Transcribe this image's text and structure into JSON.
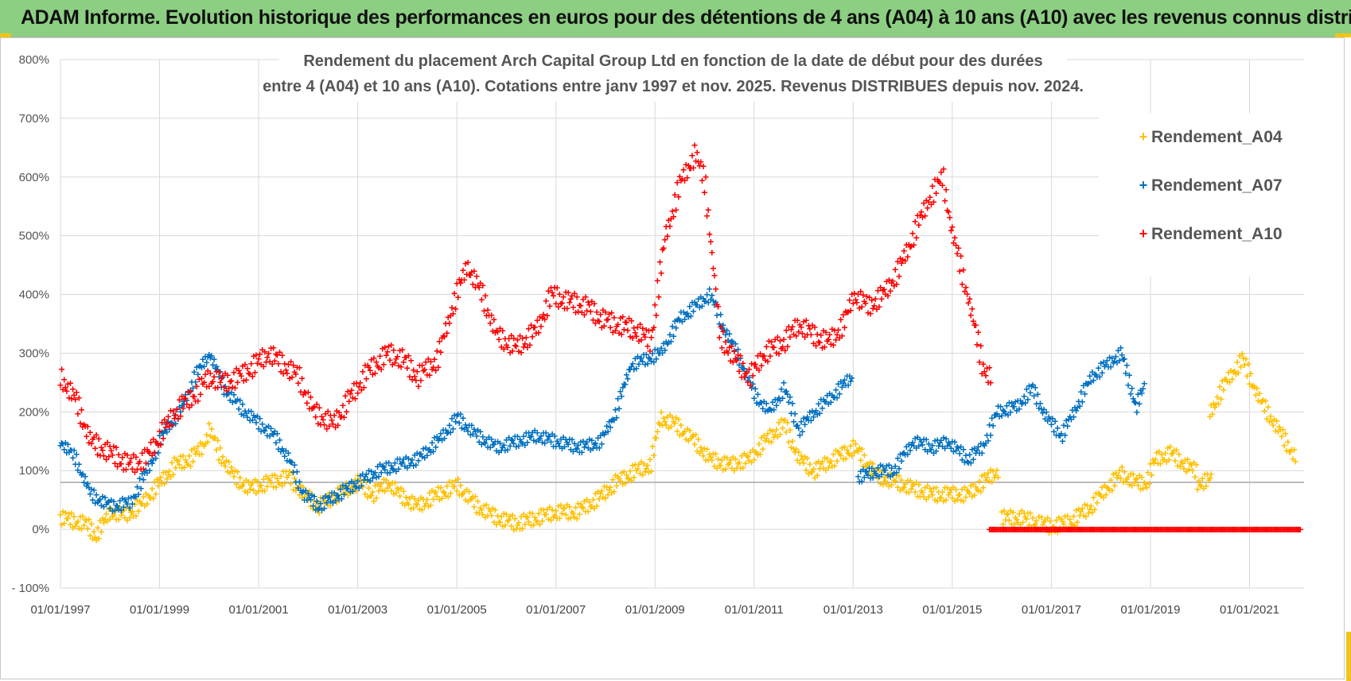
{
  "banner": {
    "title": "ADAM Informe. Evolution historique des performances en euros pour des détentions de 4 ans (A04) à 10 ans (A10) avec les revenus connus distribués"
  },
  "colors": {
    "banner_bg": "#8ccf82",
    "corner_accent": "#f2c418",
    "A04": "#ffc000",
    "A07": "#0070c0",
    "A10": "#ff0000",
    "grid": "#d9d9d9",
    "ref_line": "#a6a6a6"
  },
  "chart_data": {
    "type": "scatter",
    "title_lines": [
      "Rendement du placement Arch Capital Group Ltd en fonction de la date de début pour des durées",
      "entre 4 (A04) et 10 ans (A10).  Cotations entre janv 1997 et nov. 2025. Revenus DISTRIBUES depuis nov. 2024."
    ],
    "xlabel": "",
    "ylabel": "",
    "xlim": [
      1997.0,
      2022.1
    ],
    "ylim": [
      -100,
      800
    ],
    "grid": true,
    "reference_line_y": 80,
    "y_ticks": [
      {
        "value": 800,
        "label": "800%"
      },
      {
        "value": 700,
        "label": "700%"
      },
      {
        "value": 600,
        "label": "600%"
      },
      {
        "value": 500,
        "label": "500%"
      },
      {
        "value": 400,
        "label": "400%"
      },
      {
        "value": 300,
        "label": "300%"
      },
      {
        "value": 200,
        "label": "200%"
      },
      {
        "value": 100,
        "label": "100%"
      },
      {
        "value": 0,
        "label": "0%"
      },
      {
        "value": -100,
        "label": "- 100%"
      }
    ],
    "x_ticks": [
      {
        "value": 1997,
        "label": "01/01/1997"
      },
      {
        "value": 1999,
        "label": "01/01/1999"
      },
      {
        "value": 2001,
        "label": "01/01/2001"
      },
      {
        "value": 2003,
        "label": "01/01/2003"
      },
      {
        "value": 2005,
        "label": "01/01/2005"
      },
      {
        "value": 2007,
        "label": "01/01/2007"
      },
      {
        "value": 2009,
        "label": "01/01/2009"
      },
      {
        "value": 2011,
        "label": "01/01/2011"
      },
      {
        "value": 2013,
        "label": "01/01/2013"
      },
      {
        "value": 2015,
        "label": "01/01/2015"
      },
      {
        "value": 2017,
        "label": "01/01/2017"
      },
      {
        "value": 2019,
        "label": "01/01/2019"
      },
      {
        "value": 2021,
        "label": "01/01/2021"
      }
    ],
    "legend_position": "top-right",
    "series": [
      {
        "name": "Rendement_A04",
        "color": "#ffc000",
        "x_step": 0.05,
        "segments": [
          {
            "x_start": 1997.0,
            "x_end": 2015.9,
            "anchors": [
              [
                1997.0,
                20
              ],
              [
                1997.5,
                10
              ],
              [
                1997.7,
                -10
              ],
              [
                1998.0,
                30
              ],
              [
                1998.3,
                25
              ],
              [
                1998.6,
                40
              ],
              [
                1998.9,
                70
              ],
              [
                1999.1,
                90
              ],
              [
                1999.3,
                110
              ],
              [
                1999.6,
                120
              ],
              [
                1999.85,
                140
              ],
              [
                2000.0,
                170
              ],
              [
                2000.2,
                130
              ],
              [
                2000.5,
                90
              ],
              [
                2000.8,
                70
              ],
              [
                2001.2,
                80
              ],
              [
                2001.6,
                90
              ],
              [
                2001.9,
                60
              ],
              [
                2002.2,
                40
              ],
              [
                2002.6,
                60
              ],
              [
                2003.0,
                80
              ],
              [
                2003.3,
                60
              ],
              [
                2003.6,
                80
              ],
              [
                2003.9,
                55
              ],
              [
                2004.2,
                40
              ],
              [
                2004.6,
                60
              ],
              [
                2005.0,
                75
              ],
              [
                2005.4,
                40
              ],
              [
                2005.8,
                20
              ],
              [
                2006.2,
                10
              ],
              [
                2006.6,
                20
              ],
              [
                2007.0,
                30
              ],
              [
                2007.4,
                30
              ],
              [
                2007.8,
                50
              ],
              [
                2008.2,
                80
              ],
              [
                2008.6,
                100
              ],
              [
                2008.9,
                110
              ],
              [
                2009.1,
                190
              ],
              [
                2009.4,
                180
              ],
              [
                2009.8,
                150
              ],
              [
                2010.1,
                120
              ],
              [
                2010.5,
                110
              ],
              [
                2010.9,
                120
              ],
              [
                2011.2,
                150
              ],
              [
                2011.6,
                180
              ],
              [
                2011.9,
                120
              ],
              [
                2012.2,
                100
              ],
              [
                2012.6,
                120
              ],
              [
                2013.0,
                140
              ],
              [
                2013.2,
                120
              ],
              [
                2013.5,
                90
              ],
              [
                2013.9,
                80
              ],
              [
                2014.2,
                70
              ],
              [
                2014.6,
                60
              ],
              [
                2014.9,
                60
              ],
              [
                2015.3,
                60
              ],
              [
                2015.6,
                80
              ],
              [
                2015.9,
                100
              ]
            ]
          },
          {
            "x_start": 2016.0,
            "x_end": 2019.9,
            "anchors": [
              [
                2016.0,
                20
              ],
              [
                2016.4,
                20
              ],
              [
                2016.8,
                10
              ],
              [
                2017.0,
                5
              ],
              [
                2017.4,
                15
              ],
              [
                2017.8,
                40
              ],
              [
                2018.1,
                70
              ],
              [
                2018.4,
                95
              ],
              [
                2018.7,
                80
              ],
              [
                2018.9,
                80
              ],
              [
                2019.1,
                120
              ],
              [
                2019.4,
                130
              ],
              [
                2019.7,
                110
              ],
              [
                2019.9,
                100
              ]
            ]
          },
          {
            "x_start": 2019.95,
            "x_end": 2020.2,
            "anchors": [
              [
                2019.95,
                80
              ],
              [
                2020.2,
                85
              ]
            ]
          },
          {
            "x_start": 2020.2,
            "x_end": 2021.9,
            "anchors": [
              [
                2020.2,
                200
              ],
              [
                2020.5,
                250
              ],
              [
                2020.85,
                290
              ],
              [
                2021.2,
                220
              ],
              [
                2021.5,
                180
              ],
              [
                2021.9,
                125
              ]
            ]
          }
        ]
      },
      {
        "name": "Rendement_A07",
        "color": "#0070c0",
        "x_step": 0.05,
        "segments": [
          {
            "x_start": 1997.0,
            "x_end": 2012.95,
            "anchors": [
              [
                1997.0,
                150
              ],
              [
                1997.3,
                120
              ],
              [
                1997.6,
                60
              ],
              [
                1998.0,
                40
              ],
              [
                1998.4,
                45
              ],
              [
                1998.8,
                110
              ],
              [
                1999.1,
                170
              ],
              [
                1999.4,
                200
              ],
              [
                1999.7,
                260
              ],
              [
                2000.0,
                300
              ],
              [
                2000.3,
                240
              ],
              [
                2000.6,
                210
              ],
              [
                2001.0,
                180
              ],
              [
                2001.3,
                160
              ],
              [
                2001.6,
                120
              ],
              [
                2001.9,
                60
              ],
              [
                2002.2,
                40
              ],
              [
                2002.6,
                60
              ],
              [
                2003.0,
                80
              ],
              [
                2003.4,
                100
              ],
              [
                2003.8,
                110
              ],
              [
                2004.2,
                120
              ],
              [
                2004.6,
                150
              ],
              [
                2005.0,
                190
              ],
              [
                2005.4,
                160
              ],
              [
                2005.8,
                140
              ],
              [
                2006.2,
                150
              ],
              [
                2006.6,
                160
              ],
              [
                2007.0,
                150
              ],
              [
                2007.5,
                140
              ],
              [
                2007.9,
                150
              ],
              [
                2008.2,
                200
              ],
              [
                2008.5,
                280
              ],
              [
                2008.8,
                290
              ],
              [
                2009.1,
                300
              ],
              [
                2009.5,
                360
              ],
              [
                2009.8,
                380
              ],
              [
                2010.1,
                400
              ],
              [
                2010.4,
                340
              ],
              [
                2010.7,
                290
              ],
              [
                2011.0,
                230
              ],
              [
                2011.3,
                200
              ],
              [
                2011.6,
                240
              ],
              [
                2011.9,
                170
              ],
              [
                2012.2,
                200
              ],
              [
                2012.6,
                230
              ],
              [
                2012.95,
                260
              ]
            ]
          },
          {
            "x_start": 2013.1,
            "x_end": 2018.85,
            "anchors": [
              [
                2013.1,
                90
              ],
              [
                2013.5,
                100
              ],
              [
                2013.8,
                100
              ],
              [
                2014.2,
                150
              ],
              [
                2014.6,
                140
              ],
              [
                2014.9,
                150
              ],
              [
                2015.3,
                120
              ],
              [
                2015.6,
                140
              ],
              [
                2015.9,
                200
              ],
              [
                2016.3,
                210
              ],
              [
                2016.6,
                240
              ],
              [
                2016.9,
                190
              ],
              [
                2017.2,
                160
              ],
              [
                2017.5,
                210
              ],
              [
                2017.8,
                260
              ],
              [
                2018.1,
                280
              ],
              [
                2018.4,
                300
              ],
              [
                2018.7,
                210
              ],
              [
                2018.85,
                240
              ]
            ]
          }
        ]
      },
      {
        "name": "Rendement_A10",
        "color": "#ff0000",
        "x_step": 0.05,
        "segments": [
          {
            "x_start": 1997.0,
            "x_end": 2015.75,
            "anchors": [
              [
                1997.0,
                260
              ],
              [
                1997.3,
                220
              ],
              [
                1997.6,
                150
              ],
              [
                1998.0,
                130
              ],
              [
                1998.4,
                110
              ],
              [
                1998.7,
                120
              ],
              [
                1999.0,
                160
              ],
              [
                1999.3,
                200
              ],
              [
                1999.7,
                230
              ],
              [
                2000.0,
                260
              ],
              [
                2000.3,
                250
              ],
              [
                2000.6,
                260
              ],
              [
                2000.9,
                280
              ],
              [
                2001.2,
                300
              ],
              [
                2001.5,
                280
              ],
              [
                2001.8,
                260
              ],
              [
                2002.1,
                200
              ],
              [
                2002.5,
                180
              ],
              [
                2002.8,
                220
              ],
              [
                2003.2,
                270
              ],
              [
                2003.6,
                300
              ],
              [
                2003.9,
                290
              ],
              [
                2004.2,
                260
              ],
              [
                2004.6,
                290
              ],
              [
                2004.9,
                380
              ],
              [
                2005.2,
                450
              ],
              [
                2005.5,
                400
              ],
              [
                2005.8,
                330
              ],
              [
                2006.2,
                310
              ],
              [
                2006.6,
                340
              ],
              [
                2006.9,
                400
              ],
              [
                2007.2,
                390
              ],
              [
                2007.6,
                380
              ],
              [
                2007.9,
                360
              ],
              [
                2008.2,
                350
              ],
              [
                2008.6,
                340
              ],
              [
                2008.9,
                320
              ],
              [
                2009.2,
                500
              ],
              [
                2009.5,
                590
              ],
              [
                2009.8,
                640
              ],
              [
                2010.0,
                590
              ],
              [
                2010.3,
                330
              ],
              [
                2010.6,
                290
              ],
              [
                2010.9,
                260
              ],
              [
                2011.2,
                300
              ],
              [
                2011.6,
                320
              ],
              [
                2011.9,
                350
              ],
              [
                2012.2,
                330
              ],
              [
                2012.5,
                320
              ],
              [
                2012.8,
                350
              ],
              [
                2013.0,
                400
              ],
              [
                2013.3,
                380
              ],
              [
                2013.6,
                400
              ],
              [
                2013.9,
                440
              ],
              [
                2014.2,
                500
              ],
              [
                2014.5,
                560
              ],
              [
                2014.8,
                600
              ],
              [
                2015.0,
                500
              ],
              [
                2015.3,
                400
              ],
              [
                2015.6,
                280
              ],
              [
                2015.75,
                260
              ]
            ]
          },
          {
            "x_start": 2015.75,
            "x_end": 2022.0,
            "anchors": [
              [
                2015.75,
                0
              ],
              [
                2022.0,
                0
              ]
            ]
          }
        ]
      }
    ]
  }
}
